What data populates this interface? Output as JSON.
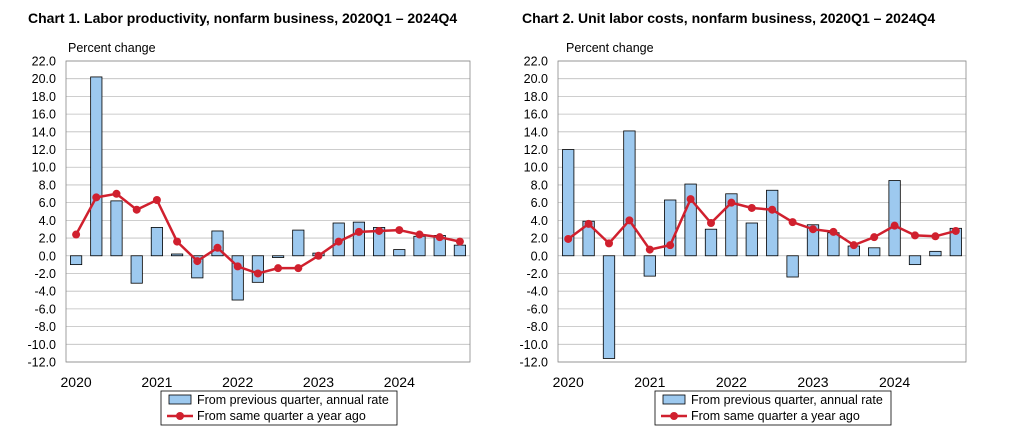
{
  "chart_data": [
    {
      "type": "bar",
      "title": "Chart  1. Labor productivity, nonfarm business, 2020Q1 – 2024Q4",
      "ylabel": "Percent change",
      "ylim": [
        -12,
        22
      ],
      "yticks": [
        "22.0",
        "20.0",
        "18.0",
        "16.0",
        "14.0",
        "12.0",
        "10.0",
        "8.0",
        "6.0",
        "4.0",
        "2.0",
        "0.0",
        "-2.0",
        "-4.0",
        "-6.0",
        "-8.0",
        "-10.0",
        "-12.0"
      ],
      "year_labels": [
        "2020",
        "2021",
        "2022",
        "2023",
        "2024"
      ],
      "categories": [
        "2020Q1",
        "2020Q2",
        "2020Q3",
        "2020Q4",
        "2021Q1",
        "2021Q2",
        "2021Q3",
        "2021Q4",
        "2022Q1",
        "2022Q2",
        "2022Q3",
        "2022Q4",
        "2023Q1",
        "2023Q2",
        "2023Q3",
        "2023Q4",
        "2024Q1",
        "2024Q2",
        "2024Q3",
        "2024Q4"
      ],
      "grid": true,
      "legend_position": "bottom",
      "series": [
        {
          "name": "From previous quarter, annual rate",
          "kind": "bar",
          "color": "#9dc9ef",
          "values": [
            -1.0,
            20.2,
            6.2,
            -3.1,
            3.2,
            0.2,
            -2.5,
            2.8,
            -5.0,
            -3.0,
            -0.2,
            2.9,
            0.3,
            3.7,
            3.8,
            3.2,
            0.7,
            2.2,
            2.3,
            1.2
          ]
        },
        {
          "name": "From same quarter a year ago",
          "kind": "line",
          "color": "#d0202e",
          "values": [
            2.4,
            6.6,
            7.0,
            5.2,
            6.3,
            1.6,
            -0.6,
            0.9,
            -1.2,
            -2.0,
            -1.4,
            -1.4,
            0.0,
            1.6,
            2.7,
            2.8,
            2.9,
            2.4,
            2.1,
            1.6
          ]
        }
      ]
    },
    {
      "type": "bar",
      "title": "Chart  2. Unit labor costs, nonfarm business, 2020Q1 – 2024Q4",
      "ylabel": "Percent change",
      "ylim": [
        -12,
        22
      ],
      "yticks": [
        "22.0",
        "20.0",
        "18.0",
        "16.0",
        "14.0",
        "12.0",
        "10.0",
        "8.0",
        "6.0",
        "4.0",
        "2.0",
        "0.0",
        "-2.0",
        "-4.0",
        "-6.0",
        "-8.0",
        "-10.0",
        "-12.0"
      ],
      "year_labels": [
        "2020",
        "2021",
        "2022",
        "2023",
        "2024"
      ],
      "categories": [
        "2020Q1",
        "2020Q2",
        "2020Q3",
        "2020Q4",
        "2021Q1",
        "2021Q2",
        "2021Q3",
        "2021Q4",
        "2022Q1",
        "2022Q2",
        "2022Q3",
        "2022Q4",
        "2023Q1",
        "2023Q2",
        "2023Q3",
        "2023Q4",
        "2024Q1",
        "2024Q2",
        "2024Q3",
        "2024Q4"
      ],
      "grid": true,
      "legend_position": "bottom",
      "series": [
        {
          "name": "From previous quarter, annual rate",
          "kind": "bar",
          "color": "#9dc9ef",
          "values": [
            12.0,
            3.9,
            -11.6,
            14.1,
            -2.3,
            6.3,
            8.1,
            3.0,
            7.0,
            3.7,
            7.4,
            -2.4,
            3.5,
            2.6,
            1.1,
            0.9,
            8.5,
            -1.0,
            0.5,
            3.1
          ]
        },
        {
          "name": "From same quarter a year ago",
          "kind": "line",
          "color": "#d0202e",
          "values": [
            1.9,
            3.6,
            1.4,
            4.0,
            0.7,
            1.2,
            6.4,
            3.7,
            6.0,
            5.4,
            5.2,
            3.8,
            3.0,
            2.7,
            1.2,
            2.1,
            3.4,
            2.3,
            2.2,
            2.8
          ]
        }
      ]
    }
  ]
}
